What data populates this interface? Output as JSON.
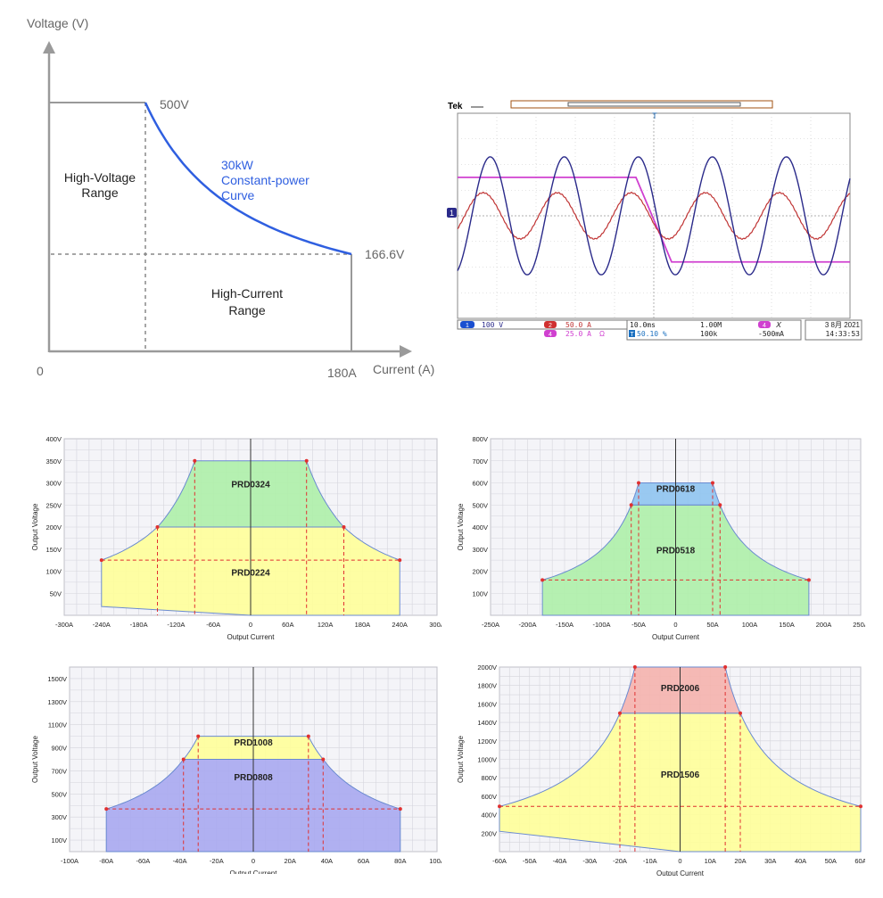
{
  "colors": {
    "page_bg": "#ffffff",
    "chart_bg": "#f4f4f8",
    "grid": "#d5d5dc",
    "dash_red": "#e03030",
    "yellow": "#ffff99",
    "green": "#aef0a8",
    "blue": "#8fc4f0",
    "purple": "#a8a8f0",
    "pink": "#f5b3ad",
    "curve_blue": "#2f5fe0",
    "scope_ch1": "#2a2a8a",
    "scope_ch2": "#c03535",
    "scope_ch4": "#d040d0"
  },
  "chart_data": [
    {
      "type": "line",
      "ylabel": "Voltage (V)",
      "xlabel": "Current (A)",
      "origin_label": "0",
      "x_end_label": "180A",
      "series": [
        {
          "name": "30kW Constant-power Curve",
          "points": [
            [
              0,
              500
            ],
            [
              60,
              500
            ],
            [
              80,
              375
            ],
            [
              100,
              300
            ],
            [
              120,
              250
            ],
            [
              140,
              214
            ],
            [
              160,
              187.5
            ],
            [
              180,
              166.6
            ]
          ]
        }
      ],
      "points_labels": {
        "v_max": "500V",
        "v_min": "166.6V"
      },
      "annotations": {
        "curve_l1": "30kW",
        "curve_l2": "Constant-power",
        "curve_l3": "Curve",
        "hv_l1": "High-Voltage",
        "hv_l2": "Range",
        "hc_l1": "High-Current",
        "hc_l2": "Range"
      }
    },
    {
      "type": "line",
      "brand": "Tek",
      "series": [
        {
          "name": "1",
          "color": "#2a2a8a",
          "form": "sine",
          "cycles": 5.3,
          "amplitude_div": 2.3
        },
        {
          "name": "2",
          "color": "#c03535",
          "form": "sine",
          "cycles": 5.3,
          "amplitude_div": 0.9
        },
        {
          "name": "4",
          "color": "#d040d0",
          "form": "step",
          "high_div": 1.5,
          "low_div": -1.8
        }
      ],
      "readout": {
        "ch1_num": "1",
        "ch1": "100 V",
        "ch2_num": "2",
        "ch2": "50.0 A",
        "ch4_num": "4",
        "ch4": "25.0 A",
        "ch4_sym": "Ω",
        "timebase": "10.0ms",
        "trig": "50.10 %",
        "trig_icon": "T",
        "rate": "1.00M",
        "rec": "100k",
        "trig_src_num": "4",
        "trig_src": "𝛸",
        "trig_level": "-500mA",
        "date": "3 8月 2021",
        "time": "14:33:53"
      },
      "markers": {
        "left": "1",
        "top": "T"
      }
    },
    {
      "type": "area",
      "ylabel": "Output Voltage",
      "xlabel": "Output Current",
      "xlim": [
        -300,
        300
      ],
      "ylim": [
        0,
        400
      ],
      "xticks": [
        -300,
        -240,
        -180,
        -120,
        -60,
        0,
        60,
        120,
        180,
        240,
        300
      ],
      "xtick_labels": [
        "-300A",
        "-240A",
        "-180A",
        "-120A",
        "-60A",
        "0",
        "60A",
        "120A",
        "180A",
        "240A",
        "300A"
      ],
      "yticks": [
        50,
        100,
        150,
        200,
        250,
        300,
        350,
        400
      ],
      "ytick_labels": [
        "50V",
        "100V",
        "150V",
        "200V",
        "250V",
        "300V",
        "350V",
        "400V"
      ],
      "regions": [
        {
          "name": "PRD0224",
          "color": "#ffff99",
          "vmax": 200,
          "imax": 150,
          "vlow": 125,
          "iend": 240,
          "neg_v_at_iend": 20
        },
        {
          "name": "PRD0324",
          "color": "#aef0a8",
          "vmax": 350,
          "imax": 90,
          "vlow": 200,
          "iend": 150
        }
      ],
      "ref_v": 125,
      "label_y": {
        "PRD0324": 290,
        "PRD0224": 90
      }
    },
    {
      "type": "area",
      "ylabel": "Output Voltage",
      "xlabel": "Output Current",
      "xlim": [
        -250,
        250
      ],
      "ylim": [
        0,
        800
      ],
      "xticks": [
        -250,
        -200,
        -150,
        -100,
        -50,
        0,
        50,
        100,
        150,
        200,
        250
      ],
      "xtick_labels": [
        "-250A",
        "-200A",
        "-150A",
        "-100A",
        "-50A",
        "0",
        "50A",
        "100A",
        "150A",
        "200A",
        "250A"
      ],
      "yticks": [
        100,
        200,
        300,
        400,
        500,
        600,
        700,
        800
      ],
      "ytick_labels": [
        "100V",
        "200V",
        "300V",
        "400V",
        "500V",
        "600V",
        "700V",
        "800V"
      ],
      "regions": [
        {
          "name": "PRD0518",
          "color": "#aef0a8",
          "vmax": 500,
          "imax": 60,
          "vlow": 160,
          "iend": 180,
          "neg_v_at_iend": 0
        },
        {
          "name": "PRD0618",
          "color": "#8fc4f0",
          "vmax": 600,
          "imax": 50,
          "vlow": 500,
          "iend": 60
        }
      ],
      "ref_v": 160,
      "label_y": {
        "PRD0618": 560,
        "PRD0518": 280
      }
    },
    {
      "type": "area",
      "ylabel": "Output Voltage",
      "xlabel": "Output Current",
      "xlim": [
        -100,
        100
      ],
      "ylim": [
        0,
        1600
      ],
      "xticks": [
        -100,
        -80,
        -60,
        -40,
        -20,
        0,
        20,
        40,
        60,
        80,
        100
      ],
      "xtick_labels": [
        "-100A",
        "-80A",
        "-60A",
        "-40A",
        "-20A",
        "0",
        "20A",
        "40A",
        "60A",
        "80A",
        "100A"
      ],
      "yticks": [
        100,
        300,
        500,
        700,
        900,
        1100,
        1300,
        1500
      ],
      "ytick_labels": [
        "100V",
        "300V",
        "500V",
        "700V",
        "900V",
        "1100V",
        "1300V",
        "1500V"
      ],
      "regions": [
        {
          "name": "PRD0808",
          "color": "#a8a8f0",
          "vmax": 800,
          "imax": 38,
          "vlow": 370,
          "iend": 80,
          "neg_v_at_iend": 0
        },
        {
          "name": "PRD1008",
          "color": "#ffff99",
          "vmax": 1000,
          "imax": 30,
          "vlow": 800,
          "iend": 38
        }
      ],
      "ref_v": 370,
      "label_y": {
        "PRD1008": 920,
        "PRD0808": 620
      }
    },
    {
      "type": "area",
      "ylabel": "Output Voltage",
      "xlabel": "Output Current",
      "xlim": [
        -60,
        60
      ],
      "ylim": [
        0,
        2000
      ],
      "xticks": [
        -60,
        -50,
        -40,
        -30,
        -20,
        -10,
        0,
        10,
        20,
        30,
        40,
        50,
        60
      ],
      "xtick_labels": [
        "-60A",
        "-50A",
        "-40A",
        "-30A",
        "-20A",
        "-10A",
        "0",
        "10A",
        "20A",
        "30A",
        "40A",
        "50A",
        "60A"
      ],
      "yticks": [
        200,
        400,
        600,
        800,
        1000,
        1200,
        1400,
        1600,
        1800,
        2000
      ],
      "ytick_labels": [
        "200V",
        "400V",
        "600V",
        "800V",
        "1000V",
        "1200V",
        "1400V",
        "1600V",
        "1800V",
        "2000V"
      ],
      "regions": [
        {
          "name": "PRD1506",
          "color": "#ffff99",
          "vmax": 1500,
          "imax": 20,
          "vlow": 490,
          "iend": 60,
          "neg_v_at_iend": 220
        },
        {
          "name": "PRD2006",
          "color": "#f5b3ad",
          "vmax": 2000,
          "imax": 15,
          "vlow": 1500,
          "iend": 20
        }
      ],
      "ref_v": 490,
      "label_y": {
        "PRD2006": 1740,
        "PRD1506": 800
      }
    }
  ]
}
